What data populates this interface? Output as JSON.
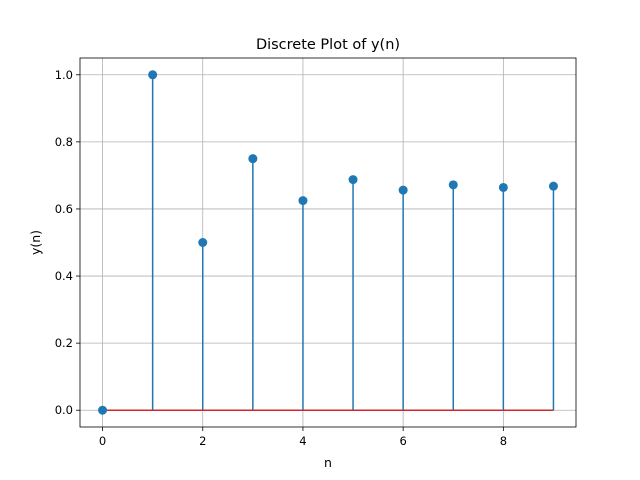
{
  "chart_data": {
    "type": "stem",
    "title": "Discrete Plot of y(n)",
    "xlabel": "n",
    "ylabel": "y(n)",
    "x": [
      0,
      1,
      2,
      3,
      4,
      5,
      6,
      7,
      8,
      9
    ],
    "y": [
      0,
      1.0,
      0.5,
      0.75,
      0.625,
      0.6875,
      0.65625,
      0.671875,
      0.6640625,
      0.66796875
    ],
    "xlim": [
      -0.45,
      9.45
    ],
    "ylim": [
      -0.05,
      1.05
    ],
    "xticks": [
      0,
      2,
      4,
      6,
      8
    ],
    "xtick_labels": [
      "0",
      "2",
      "4",
      "6",
      "8"
    ],
    "yticks": [
      0.0,
      0.2,
      0.4,
      0.6,
      0.8,
      1.0
    ],
    "ytick_labels": [
      "0.0",
      "0.2",
      "0.4",
      "0.6",
      "0.8",
      "1.0"
    ],
    "grid": true,
    "baseline": 0,
    "colors": {
      "stem": "#1f77b4",
      "marker": "#1f77b4",
      "baseline": "#d62728",
      "grid": "#b0b0b0"
    }
  }
}
